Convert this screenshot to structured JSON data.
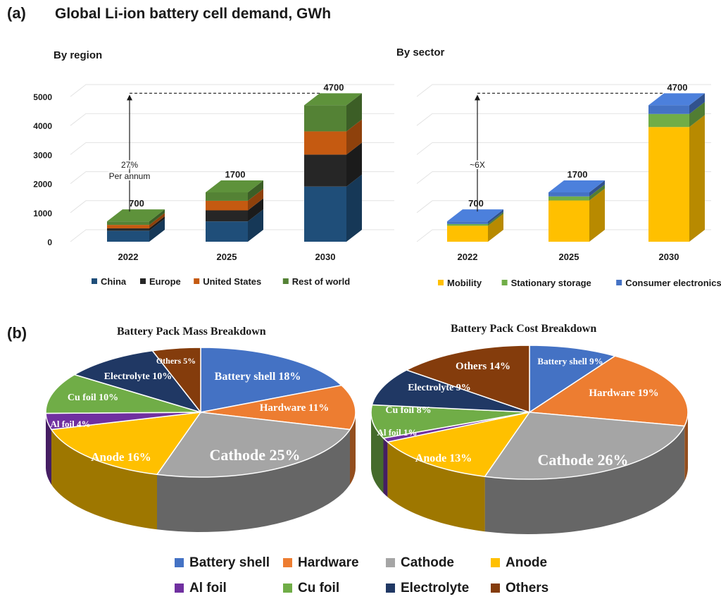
{
  "panel_labels": {
    "a": "(a)",
    "b": "(b)"
  },
  "title": "Global Li-ion battery cell demand, GWh",
  "colors": {
    "China": "#1f4e79",
    "Europe": "#262626",
    "United States": "#c55a11",
    "Rest of world": "#548235",
    "Mobility": "#ffc000",
    "Stationary storage": "#70ad47",
    "Consumer electronics": "#4472c4",
    "Battery shell": "#4472c4",
    "Hardware": "#ed7d31",
    "Cathode": "#a5a5a5",
    "Anode": "#ffc000",
    "Al foil": "#7030a0",
    "Cu foil": "#70ad47",
    "Electrolyte": "#203864",
    "Others": "#843c0c"
  },
  "chart_data": [
    {
      "type": "bar",
      "title": "By region",
      "stacked": true,
      "categories": [
        "2022",
        "2025",
        "2030"
      ],
      "y_ticks": [
        "0",
        "1000",
        "2000",
        "3000",
        "4000",
        "5000"
      ],
      "ylim": [
        0,
        5000
      ],
      "series": [
        {
          "name": "China",
          "values": [
            380,
            700,
            1900
          ]
        },
        {
          "name": "Europe",
          "values": [
            80,
            380,
            1100
          ]
        },
        {
          "name": "United States",
          "values": [
            120,
            330,
            800
          ]
        },
        {
          "name": "Rest of world",
          "values": [
            120,
            290,
            900
          ]
        }
      ],
      "totals": [
        "700",
        "1700",
        "4700"
      ],
      "annotation": [
        "27%",
        "Per annum"
      ],
      "legend_position": "bottom"
    },
    {
      "type": "bar",
      "title": "By sector",
      "stacked": true,
      "categories": [
        "2022",
        "2025",
        "2030"
      ],
      "ylim": [
        0,
        5000
      ],
      "series": [
        {
          "name": "Mobility",
          "values": [
            550,
            1420,
            3950
          ]
        },
        {
          "name": "Stationary storage",
          "values": [
            60,
            140,
            450
          ]
        },
        {
          "name": "Consumer electronics",
          "values": [
            90,
            140,
            300
          ]
        }
      ],
      "totals": [
        "700",
        "1700",
        "4700"
      ],
      "annotation": "~6X",
      "legend_position": "bottom"
    },
    {
      "type": "pie",
      "title": "Battery Pack Mass Breakdown",
      "slices": [
        {
          "name": "Battery shell",
          "value": 18,
          "label": "Battery shell 18%"
        },
        {
          "name": "Hardware",
          "value": 11,
          "label": "Hardware 11%"
        },
        {
          "name": "Cathode",
          "value": 25,
          "label": "Cathode 25%"
        },
        {
          "name": "Anode",
          "value": 16,
          "label": "Anode 16%"
        },
        {
          "name": "Al foil",
          "value": 4,
          "label": "Al foil 4%"
        },
        {
          "name": "Cu foil",
          "value": 10,
          "label": "Cu foil 10%"
        },
        {
          "name": "Electrolyte",
          "value": 10,
          "label": "Electrolyte 10%"
        },
        {
          "name": "Others",
          "value": 5,
          "label": "Others 5%"
        }
      ]
    },
    {
      "type": "pie",
      "title": "Battery Pack Cost Breakdown",
      "slices": [
        {
          "name": "Battery shell",
          "value": 9,
          "label": "Battery shell 9%"
        },
        {
          "name": "Hardware",
          "value": 19,
          "label": "Hardware 19%"
        },
        {
          "name": "Cathode",
          "value": 26,
          "label": "Cathode 26%"
        },
        {
          "name": "Anode",
          "value": 13,
          "label": "Anode 13%"
        },
        {
          "name": "Al foil",
          "value": 1,
          "label": "Al foil 1%"
        },
        {
          "name": "Cu foil",
          "value": 8,
          "label": "Cu foil 8%"
        },
        {
          "name": "Electrolyte",
          "value": 9,
          "label": "Electrolyte 9%"
        },
        {
          "name": "Others",
          "value": 14,
          "label": "Others 14%"
        }
      ]
    }
  ],
  "pie_legend": [
    "Battery shell",
    "Hardware",
    "Cathode",
    "Anode",
    "Al foil",
    "Cu foil",
    "Electrolyte",
    "Others"
  ]
}
